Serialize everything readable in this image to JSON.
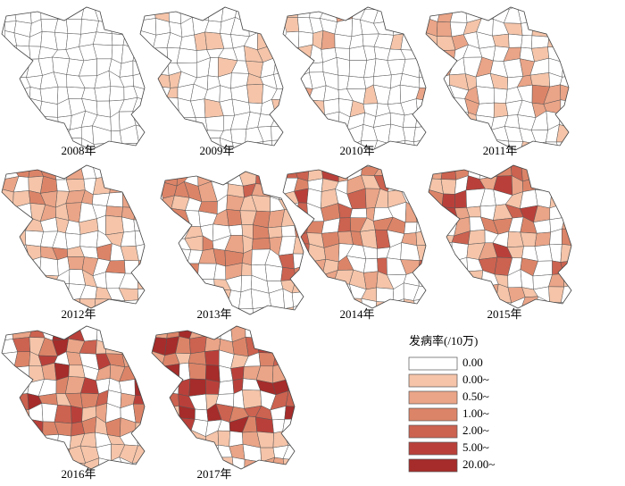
{
  "panels": [
    {
      "label": "2008年"
    },
    {
      "label": "2009年"
    },
    {
      "label": "2010年"
    },
    {
      "label": "2011年"
    },
    {
      "label": "2012年"
    },
    {
      "label": "2013年"
    },
    {
      "label": "2014年"
    },
    {
      "label": "2015年"
    },
    {
      "label": "2016年"
    },
    {
      "label": "2017年"
    }
  ],
  "legend": {
    "title": "发病率(/10万)",
    "items": [
      {
        "label": "0.00",
        "color": "#ffffff"
      },
      {
        "label": "0.00~",
        "color": "#f5c4a9"
      },
      {
        "label": "0.50~",
        "color": "#eaa487"
      },
      {
        "label": "1.00~",
        "color": "#dc8468"
      },
      {
        "label": "2.00~",
        "color": "#cc6250"
      },
      {
        "label": "5.00~",
        "color": "#b9403a"
      },
      {
        "label": "20.00~",
        "color": "#a52c2a"
      }
    ]
  }
}
